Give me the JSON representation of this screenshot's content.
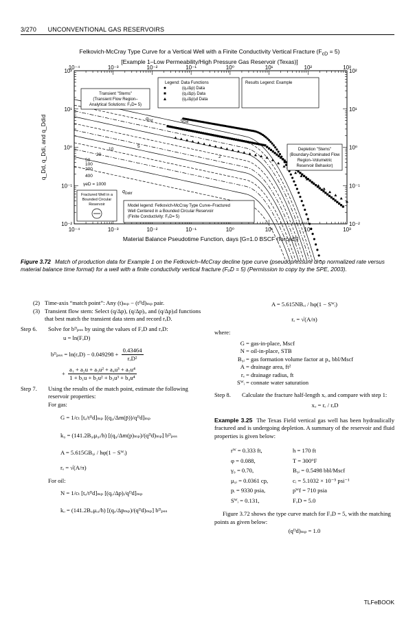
{
  "header": {
    "page": "3/270",
    "running_title": "UNCONVENTIONAL GAS RESERVOIRS"
  },
  "figure": {
    "title_line1": "Felkovich-McCray Type Curve for a Vertical Well with a Finite Conductivity Vertical Fracture (F",
    "title_line1_sub": "cD",
    "title_line1_end": " = 5)",
    "title_line2": "[Example 1–Low Permeability/High Pressure Gas Reservoir (Texas)]",
    "xlabel": "Material Balance Pseudotime Function, days [G=1.0 BSCF (forced)]",
    "ylabel": "q_Dd, q_Ddi, and q_Ddid",
    "x_ticks": [
      "10⁻⁴",
      "10⁻³",
      "10⁻²",
      "10⁻¹",
      "10⁰",
      "10¹",
      "10²",
      "10³"
    ],
    "y_ticks": [
      "10²",
      "10¹",
      "10⁰",
      "10⁻¹",
      "10⁻²"
    ],
    "legend": {
      "title": "Legend: Data Functions",
      "items": [
        {
          "marker": "circle",
          "label": "(q₉/Δp) Data"
        },
        {
          "marker": "square",
          "label": "(q₉/Δp)ᵢ Data"
        },
        {
          "marker": "triangle",
          "label": "(q₉/Δp)ᵢd Data"
        }
      ]
    },
    "results_legend": "Results Legend: Example",
    "transient_note": [
      "Transient \"Stems\"",
      "(Transient Flow Region–",
      "Analytical Solutions: FₒD= 5)"
    ],
    "depletion_note": [
      "Depletion \"Stems\"",
      "(Boundary-Dominated Flow",
      "Region–Volumetric",
      "Reservoir Behavior)"
    ],
    "curve_labels": {
      "qDd": "q",
      "qDd_sub": "Dd",
      "qDdi": "q",
      "qDdi_sub": "Ddi",
      "qDdid": "q",
      "qDdid_sub": "Ddid"
    },
    "stem_labels": [
      "γeD = 1000",
      "400",
      "200",
      "100",
      "50",
      "20",
      "10",
      "5",
      "2"
    ],
    "fractured_well_note": [
      "Fractured Well in a",
      "Bounded Circular",
      "Reservoir"
    ],
    "model_legend": [
      "Model legend:  Fetkovich-McCray Type Curve–Fractured",
      "Well Centered in a  Bounded Circular Reservoir",
      "(Finite Conductivity: FₒD= 5)"
    ]
  },
  "caption": {
    "label": "Figure 3.72",
    "text": "Match of production data for Example 1 on the Fetkovich–McCray decline type curve (pseudopressure drop normalized rate versus material balance time format) for a well with a finite conductivity vertical fracture (FₒD = 5) (Permission to copy by the SPE, 2003)."
  },
  "left_col": {
    "item2_num": "(2)",
    "item2_text": "Time-axis “match point”: Any (t)ₘₚ − (tᴰd)ₘₚ pair.",
    "item3_num": "(3)",
    "item3_text": "Transient flow stem: Select (q/Δp), (q/Δp)ᵢ, and (q/Δp)ᵢd functions that best match the transient data stem and record rₑD.",
    "step6_label": "Step 6.",
    "step6_text": "Solve for bᴰₚₛₛ by using the values of FₒD and rₑD:",
    "eq_u": "u = ln(FₒD)",
    "eq_b_lhs": "bᴰₚₛₛ = ln(rₑD) − 0.049298 +",
    "eq_b_frac_num": "0.43464",
    "eq_b_frac_den": "rₑD²",
    "eq_poly_plus": "+",
    "eq_poly_num": "a₁ + a₂u + a₃u² + a₄u³ + a₅u⁴",
    "eq_poly_den": "1 + b₁u + b₂u² + b₃u³ + b₄u⁴",
    "step7_label": "Step 7.",
    "step7_text": "Using the results of the match point, estimate the following reservoir properties:",
    "for_gas": "For gas:",
    "eq_G": "G = 1/cₜ [tₐ/tᴰd]ₘₚ [(q₉/Δm(p̄))/qᴰd]ₘₚ",
    "eq_kg": "k₉ = (141.2B₉ᵢμ₉ᵢ/h) [(q₉/Δm(p)ₘₚ)/(qᴰd)ₘₚ] bᴰₚₛₛ",
    "eq_A": "A = 5.615GB₉ᵢ / hφ(1 − Sᵂᵢ)",
    "eq_re": "rₑ = √(A/π)",
    "for_oil": "For oil:",
    "eq_N": "N = 1/cₜ [tₐ/tᴰd]ₘₚ [(qₒ/Δp)ᵢ/qᴰd]ₘₚ",
    "eq_ko": "kₒ = (141.2Bₒᵢμₒᵢ/h) [(qₒ/Δpₘₚ)/(qᴰd)ₘₚ] bᴰₚₛₛ"
  },
  "right_col": {
    "eq_A_oil": "A = 5.615NBₒᵢ / hφ(1 − Sᵂᵢ)",
    "eq_re": "rₑ = √(A/π)",
    "where": "where:",
    "defs": [
      {
        "k": "G",
        "v": "= gas-in-place, Mscf"
      },
      {
        "k": "N",
        "v": "= oil-in-place, STB"
      },
      {
        "k": "B₉ᵢ",
        "v": "= gas formation volume factor at pᵢ, bbl/Mscf"
      },
      {
        "k": "A",
        "v": "= drainage area, ft²"
      },
      {
        "k": "rₑ",
        "v": "= drainage radius, ft"
      },
      {
        "k": "Sᵂᵢ",
        "v": "= connate water saturation"
      }
    ],
    "step8_label": "Step 8.",
    "step8_text": "Calculate the fracture half-length xₒ and compare with step 1:",
    "eq_xf": "xₒ = rₑ / rₑD",
    "example_label": "Example 3.25",
    "example_text": "The Texas Field vertical gas well has been hydraulically fractured and is undergoing depletion. A summary of the reservoir and fluid properties is given below:",
    "props": [
      [
        "rᵂ = 0.333 ft,",
        "h = 170 ft"
      ],
      [
        "φ = 0.088,",
        "T = 300°F"
      ],
      [
        "γ₉ = 0.70,",
        "B₉ᵢ = 0.5498 bbl/Mscf"
      ],
      [
        "μ₉ᵢ = 0.0361 cp,",
        "cᵢ = 5.1032 × 10⁻⁵ psi⁻¹"
      ],
      [
        "pᵢ = 9330 psia,",
        "pᵂf = 710 psia"
      ],
      [
        "Sᵂᵢ = 0.131,",
        "FₒD = 5.0"
      ]
    ],
    "fig_ref_text": "Figure 3.72 shows the type curve match for FₒD = 5, with the matching points as given below:",
    "match_point": "(qᴰd)ₘₚ = 1.0"
  },
  "footer": "TLFeBOOK"
}
